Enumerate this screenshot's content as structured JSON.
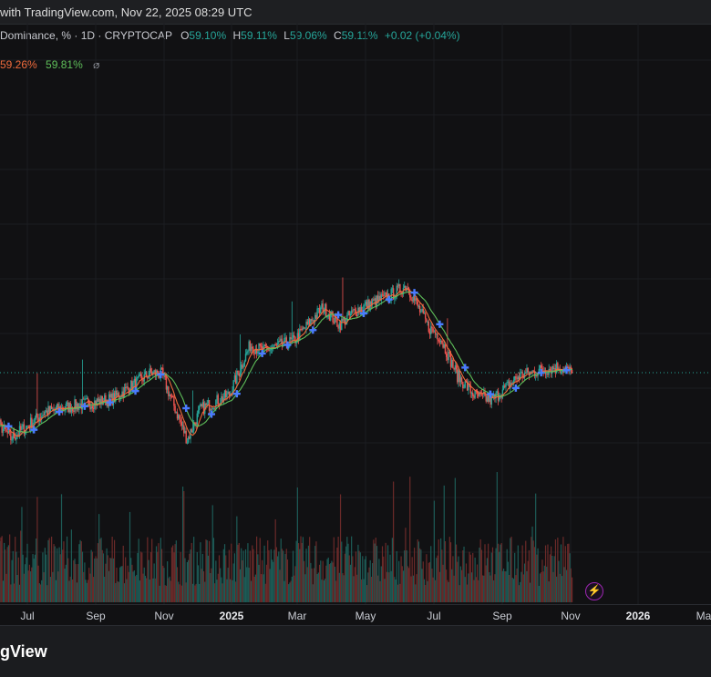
{
  "topbar": {
    "text": "with TradingView.com, Nov 22, 2025 08:29 UTC"
  },
  "legend": {
    "symbol": "Dominance, % · 1D · CRYPTOCAP",
    "o_label": "O",
    "o_value": "59.10%",
    "h_label": "H",
    "h_value": "59.11%",
    "l_label": "L",
    "l_value": "59.06%",
    "c_label": "C",
    "c_value": "59.11%",
    "change": "+0.02 (+0.04%)"
  },
  "indicators": {
    "ma_fast": "59.26%",
    "ma_slow": "59.81%",
    "hidden_icon": "eye-off-icon",
    "hidden_glyph": "⌀"
  },
  "x_axis": {
    "labels": [
      "Jul",
      "Sep",
      "Nov",
      "2025",
      "Mar",
      "May",
      "Jul",
      "Sep",
      "Nov",
      "2026",
      "Ma"
    ],
    "bold": [
      "2025",
      "2026"
    ]
  },
  "footer": {
    "brand": "gView"
  },
  "alert_icon": {
    "name": "lightning-icon",
    "glyph": "⚡"
  },
  "colors": {
    "up": "#26a69a",
    "down": "#ef5350",
    "ma_fast": "#f06b3c",
    "ma_slow": "#5fbf5a",
    "signal": "#4a7bff",
    "price_line": "#26a69a"
  },
  "chart_data": {
    "type": "candlestick",
    "title": "",
    "period": "1D",
    "price_key_points": [
      {
        "x": "2024-06-01",
        "y": 55.2
      },
      {
        "x": "2024-06-20",
        "y": 55.6
      },
      {
        "x": "2024-07-01",
        "y": 54.6
      },
      {
        "x": "2024-08-01",
        "y": 56.4
      },
      {
        "x": "2024-09-01",
        "y": 56.9
      },
      {
        "x": "2024-10-01",
        "y": 57.3
      },
      {
        "x": "2024-11-05",
        "y": 59.1
      },
      {
        "x": "2024-11-15",
        "y": 59.0
      },
      {
        "x": "2024-12-08",
        "y": 54.5
      },
      {
        "x": "2024-12-20",
        "y": 56.6
      },
      {
        "x": "2025-01-15",
        "y": 57.6
      },
      {
        "x": "2025-02-03",
        "y": 61.0
      },
      {
        "x": "2025-02-15",
        "y": 60.6
      },
      {
        "x": "2025-03-15",
        "y": 61.3
      },
      {
        "x": "2025-04-10",
        "y": 63.6
      },
      {
        "x": "2025-04-25",
        "y": 62.4
      },
      {
        "x": "2025-05-10",
        "y": 63.4
      },
      {
        "x": "2025-06-10",
        "y": 64.4
      },
      {
        "x": "2025-06-25",
        "y": 65.1
      },
      {
        "x": "2025-07-15",
        "y": 62.2
      },
      {
        "x": "2025-07-25",
        "y": 61.6
      },
      {
        "x": "2025-08-10",
        "y": 58.9
      },
      {
        "x": "2025-08-25",
        "y": 57.6
      },
      {
        "x": "2025-09-10",
        "y": 57.2
      },
      {
        "x": "2025-10-05",
        "y": 58.9
      },
      {
        "x": "2025-10-25",
        "y": 59.3
      },
      {
        "x": "2025-11-10",
        "y": 59.5
      },
      {
        "x": "2025-11-22",
        "y": 59.11
      }
    ],
    "last_close": 59.11,
    "ma_fast_last": 59.26,
    "ma_slow_last": 59.81
  }
}
